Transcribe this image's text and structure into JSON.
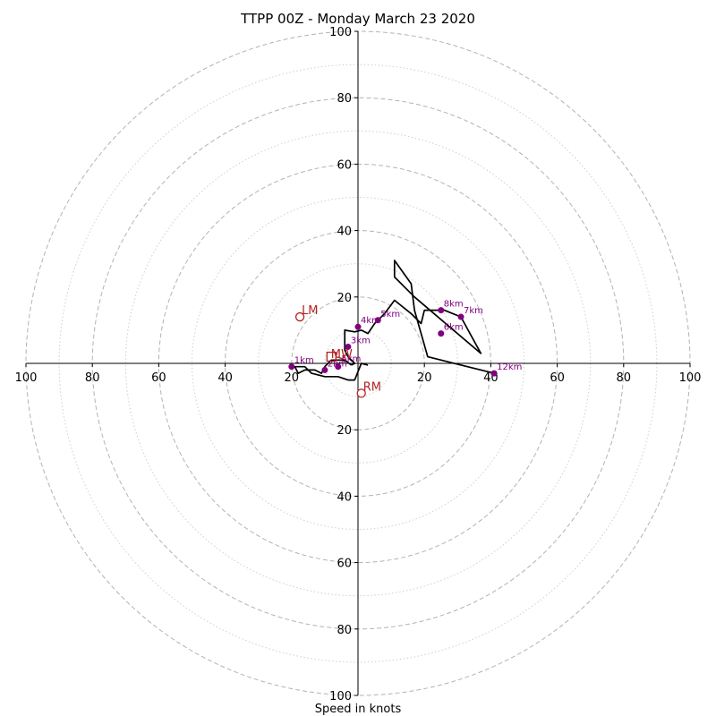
{
  "chart_data": {
    "type": "scatter",
    "subtype": "hodograph",
    "title": "TTPP 00Z - Monday March 23 2020",
    "xlabel": "Speed in knots",
    "ylabel": "",
    "axis_range": [
      -100,
      100
    ],
    "ring_major_step": 20,
    "ring_minor_step": 10,
    "rings_major": [
      20,
      40,
      60,
      80,
      100
    ],
    "tick_labels": [
      "20",
      "40",
      "60",
      "80",
      "100"
    ],
    "grid": true,
    "trace_color": "#000000",
    "height_marker_color": "#800080",
    "motion_color": "#b22222",
    "trace": [
      [
        -2,
        -0.5
      ],
      [
        -1,
        0
      ],
      [
        -3,
        2
      ],
      [
        -4,
        4
      ],
      [
        -4,
        10
      ],
      [
        -1,
        9.5
      ],
      [
        1,
        10
      ],
      [
        3,
        9
      ],
      [
        5,
        12
      ],
      [
        6,
        13
      ],
      [
        8,
        15
      ],
      [
        11,
        19
      ],
      [
        16,
        15
      ],
      [
        19,
        12
      ],
      [
        20,
        16
      ],
      [
        24,
        16
      ],
      [
        26,
        16
      ],
      [
        31,
        14
      ],
      [
        37,
        3
      ],
      [
        17,
        20
      ],
      [
        11,
        26
      ],
      [
        11,
        31
      ],
      [
        16,
        24
      ],
      [
        17,
        16
      ],
      [
        21,
        2
      ],
      [
        41,
        -3
      ]
    ],
    "trace_lower": [
      [
        -2,
        -0.5
      ],
      [
        -4,
        1
      ],
      [
        -8,
        1
      ],
      [
        -10,
        -1
      ],
      [
        -11,
        -3
      ],
      [
        -13,
        -2
      ],
      [
        -16,
        -2
      ],
      [
        -18,
        -3
      ],
      [
        -19,
        -1
      ],
      [
        -20,
        -1
      ],
      [
        -16,
        -1
      ],
      [
        -14,
        -3
      ],
      [
        -10,
        -4
      ],
      [
        -6,
        -4
      ],
      [
        -3,
        -5
      ],
      [
        -1,
        -5
      ],
      [
        1,
        0
      ],
      [
        3,
        -0.5
      ]
    ],
    "height_markers": [
      {
        "label": "1km",
        "x": -20,
        "y": -1
      },
      {
        "label": "2km",
        "x": -10,
        "y": -2
      },
      {
        "label": "3km",
        "x": -3,
        "y": 5
      },
      {
        "label": "4km",
        "x": 0,
        "y": 11
      },
      {
        "label": "5km",
        "x": 6,
        "y": 13
      },
      {
        "label": "6km",
        "x": 25,
        "y": 9
      },
      {
        "label": "7km",
        "x": 31,
        "y": 14
      },
      {
        "label": "8km",
        "x": 25,
        "y": 16
      },
      {
        "label": "12km",
        "x": 41,
        "y": -3
      },
      {
        "label": "",
        "x": -6,
        "y": -1
      }
    ],
    "storm_motion": [
      {
        "label": "LM",
        "x": -17.5,
        "y": 14
      },
      {
        "label": "MW",
        "x": -6,
        "y": 3
      },
      {
        "label": "RM",
        "x": 1,
        "y": -9
      },
      {
        "label": "DT",
        "x": -8,
        "y": 2
      }
    ],
    "bunkers_vector_label": "5km"
  }
}
